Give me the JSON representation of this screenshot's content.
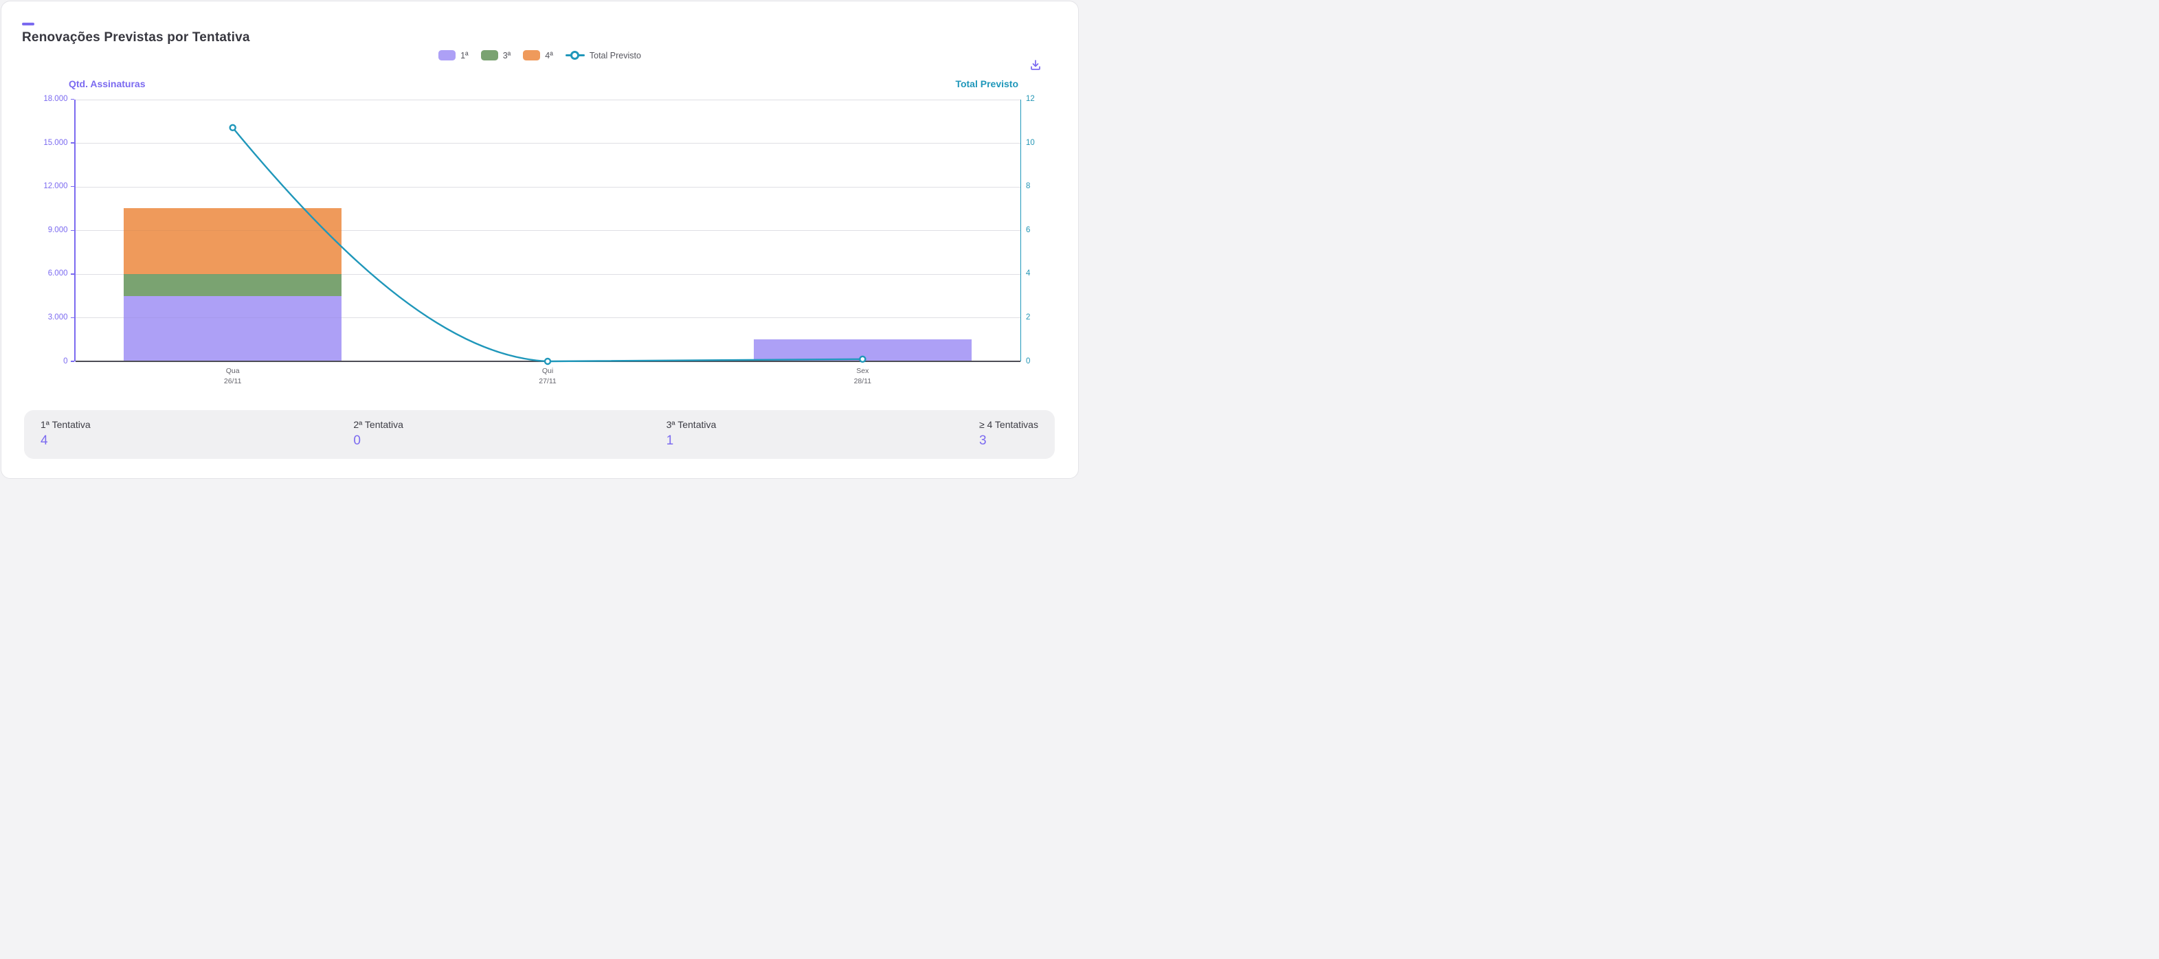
{
  "header": {
    "title": "Renovações Previstas por Tentativa"
  },
  "legend": {
    "items": [
      {
        "label": "1ª",
        "color": "#ada0f6"
      },
      {
        "label": "3ª",
        "color": "#7aa371"
      },
      {
        "label": "4ª",
        "color": "#ef9a5b"
      }
    ],
    "line_item": {
      "label": "Total Previsto",
      "color": "#1f97ba"
    }
  },
  "axes": {
    "left": {
      "title": "Qtd. Assinaturas",
      "color": "#7b6af0",
      "ticks": [
        "18.000",
        "15.000",
        "12.000",
        "9.000",
        "6.000",
        "3.000",
        "0"
      ]
    },
    "right": {
      "title": "Total Previsto",
      "color": "#1f97ba",
      "ticks": [
        "12",
        "10",
        "8",
        "6",
        "4",
        "2",
        "0"
      ]
    },
    "x": {
      "labels": [
        {
          "day": "Qua",
          "date": "26/11"
        },
        {
          "day": "Qui",
          "date": "27/11"
        },
        {
          "day": "Sex",
          "date": "28/11"
        }
      ]
    }
  },
  "chart_data": {
    "type": "bar",
    "subtype": "stacked-bar-with-line",
    "title": "Renovações Previstas por Tentativa",
    "categories": [
      "Qua 26/11",
      "Qui 27/11",
      "Sex 28/11"
    ],
    "series": [
      {
        "name": "1ª",
        "type": "bar",
        "stack": "tentativas",
        "color": "#ada0f6",
        "values": [
          4500,
          0,
          1500
        ]
      },
      {
        "name": "3ª",
        "type": "bar",
        "stack": "tentativas",
        "color": "#7aa371",
        "values": [
          1500,
          0,
          0
        ]
      },
      {
        "name": "4ª",
        "type": "bar",
        "stack": "tentativas",
        "color": "#ef9a5b",
        "values": [
          4500,
          0,
          0
        ]
      }
    ],
    "line_series": {
      "name": "Total Previsto",
      "type": "line",
      "axis": "right",
      "color": "#1f97ba",
      "values": [
        10.7,
        0,
        0.1
      ]
    },
    "ylabel_left": "Qtd. Assinaturas",
    "ylabel_right": "Total Previsto",
    "ylim_left": [
      0,
      18000
    ],
    "ytick_step_left": 3000,
    "ylim_right": [
      0,
      12
    ],
    "ytick_step_right": 2,
    "grid": true,
    "legend_position": "top-center"
  },
  "summary": {
    "cards": [
      {
        "label": "1ª Tentativa",
        "value": "4"
      },
      {
        "label": "2ª Tentativa",
        "value": "0"
      },
      {
        "label": "3ª Tentativa",
        "value": "1"
      },
      {
        "label": "≥ 4 Tentativas",
        "value": "3"
      }
    ]
  },
  "colors": {
    "accent_purple": "#7b6af0",
    "teal": "#1f97ba",
    "grid": "#e9e9ed",
    "x_axis_line": "#4d4d55",
    "strip_bg": "#f0f0f2",
    "title_text": "#37373f"
  }
}
